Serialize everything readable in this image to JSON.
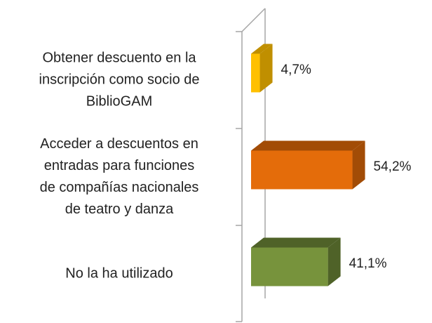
{
  "chart_data": {
    "type": "bar",
    "orientation": "horizontal",
    "categories": [
      "Obtener descuento en la\ninscripción como socio de\nBiblioGAM",
      "Acceder a descuentos en\nentradas para funciones\nde compañías nacionales\nde teatro y danza",
      "No la ha utilizado"
    ],
    "values": [
      4.7,
      54.2,
      41.1
    ],
    "value_labels": [
      "4,7%",
      "54,2%",
      "41,1%"
    ],
    "colors": [
      "#ffc000",
      "#e46c0a",
      "#77933c"
    ],
    "side_colors": [
      "#c08f00",
      "#a24c06",
      "#4f6228"
    ],
    "xlim": [
      0,
      60
    ]
  }
}
